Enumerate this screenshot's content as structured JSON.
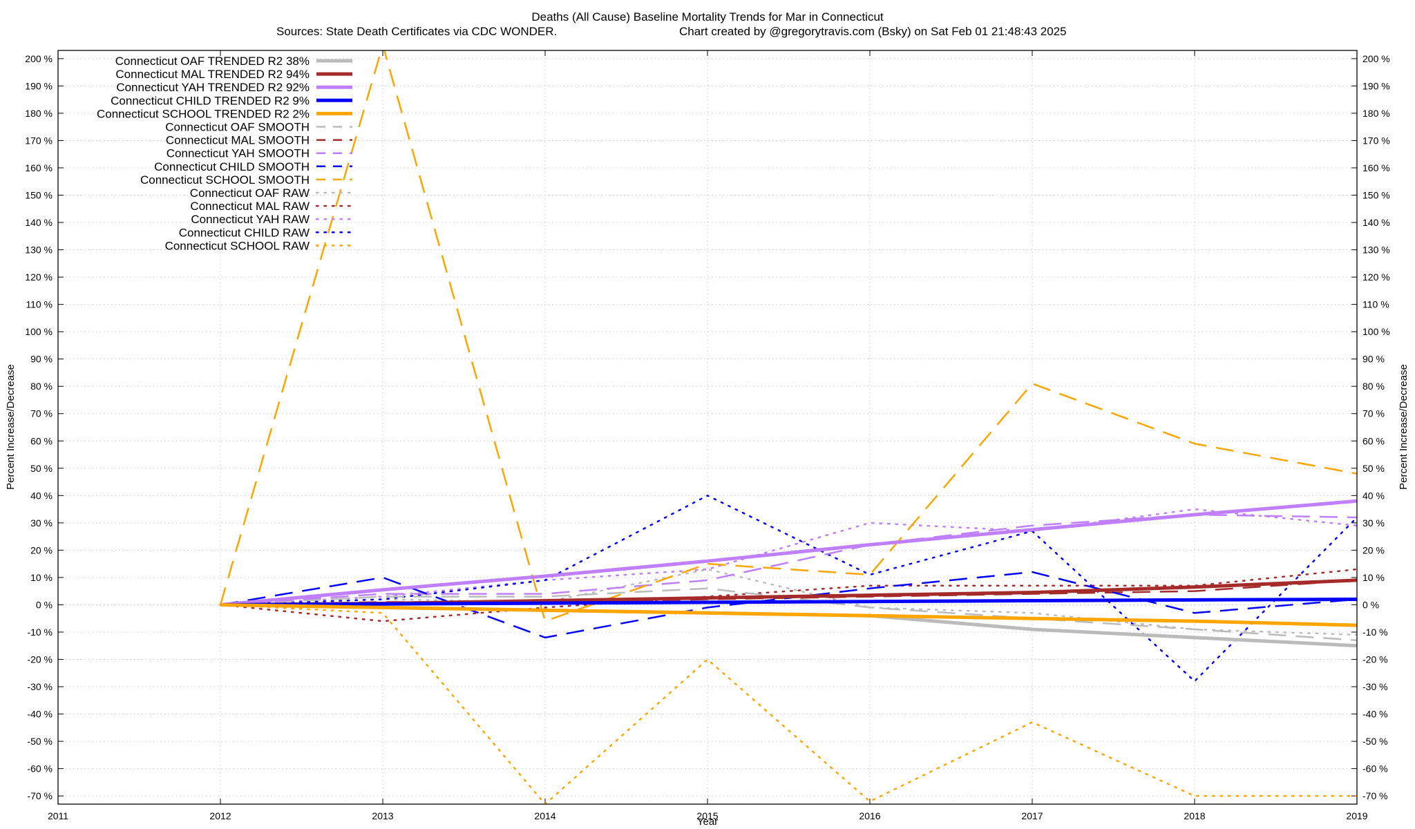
{
  "chart_data": {
    "type": "line",
    "title": "Deaths (All Cause)  Baseline Mortality Trends for Mar in Connecticut",
    "subtitle_left": "Sources: State Death Certificates via CDC WONDER.",
    "subtitle_right": "Chart created by @gregorytravis.com (Bsky) on Sat Feb 01 21:48:43 2025",
    "xlabel": "Year",
    "ylabel": "Percent Increase/Decrease",
    "y2label": "Percent Increase/Decrease",
    "xlim": [
      2011,
      2019
    ],
    "ylim": [
      -73,
      203
    ],
    "x_ticks": [
      2011,
      2012,
      2013,
      2014,
      2015,
      2016,
      2017,
      2018,
      2019
    ],
    "x_tick_labels": [
      "2011",
      "2012",
      "2013",
      "2014",
      "2015",
      "2016",
      "2017",
      "2018",
      "2019"
    ],
    "y_ticks": [
      -70,
      -60,
      -50,
      -40,
      -30,
      -20,
      -10,
      0,
      10,
      20,
      30,
      40,
      50,
      60,
      70,
      80,
      90,
      100,
      110,
      120,
      130,
      140,
      150,
      160,
      170,
      180,
      190,
      200
    ],
    "y_tick_labels_left": [
      "-70 %",
      "-60 %",
      "-50 %",
      "-40 %",
      "-30 %",
      "-20 %",
      "-10 %",
      "0 %",
      "10 %",
      "20 %",
      "30 %",
      "40 %",
      "50 %",
      "60 %",
      "70 %",
      "80 %",
      "90 %",
      "100 %",
      "110 %",
      "120 %",
      "130 %",
      "140 %",
      "150 %",
      "160 %",
      "170 %",
      "180 %",
      "190 %",
      "200 %"
    ],
    "y_tick_labels_right": [
      "-70 %",
      "-60 %",
      "-50 %",
      "-40 %",
      "-30 %",
      "-20 %",
      "-10 %",
      "0 %",
      "10 %",
      "20 %",
      "30 %",
      "40 %",
      "50 %",
      "60 %",
      "70 %",
      "80 %",
      "90 %",
      "100 %",
      "110 %",
      "120 %",
      "130 %",
      "140 %",
      "150 %",
      "160 %",
      "170 %",
      "180 %",
      "190 %",
      "200 %"
    ],
    "grid": true,
    "legend_position": "top-left",
    "x": [
      2012,
      2013,
      2014,
      2015,
      2016,
      2017,
      2018,
      2019
    ],
    "series": [
      {
        "name": "Connecticut OAF TRENDED R2  38%",
        "color": "#bbbbbb",
        "style": "solid",
        "width": 5,
        "values": [
          0,
          -1,
          -2,
          -3,
          -4,
          -9,
          -12,
          -15
        ]
      },
      {
        "name": "Connecticut MAL TRENDED R2  94%",
        "color": "#a52a2a",
        "style": "solid",
        "width": 5,
        "values": [
          0,
          0.5,
          1.5,
          2.5,
          3.5,
          4.5,
          6.5,
          9
        ]
      },
      {
        "name": "Connecticut YAH TRENDED R2  92%",
        "color": "#bf7fff",
        "style": "solid",
        "width": 5,
        "values": [
          0,
          5.5,
          10.5,
          16,
          22,
          27.5,
          33,
          38
        ]
      },
      {
        "name": "Connecticut CHILD TRENDED R2   9%",
        "color": "#0000ff",
        "style": "solid",
        "width": 5,
        "values": [
          0,
          0.3,
          0.6,
          0.9,
          1.2,
          1.5,
          1.8,
          2
        ]
      },
      {
        "name": "Connecticut SCHOOL TRENDED R2   2%",
        "color": "#ffa500",
        "style": "solid",
        "width": 5,
        "values": [
          0,
          -1,
          -2,
          -3,
          -4,
          -5,
          -6,
          -7.5
        ]
      },
      {
        "name": "Connecticut OAF SMOOTH",
        "color": "#bbbbbb",
        "style": "dashed",
        "width": 2.5,
        "values": [
          0,
          3,
          3,
          6,
          -1,
          -5,
          -9,
          -13
        ]
      },
      {
        "name": "Connecticut MAL SMOOTH",
        "color": "#a52a2a",
        "style": "dashed",
        "width": 2.5,
        "values": [
          0,
          1,
          1,
          2,
          3,
          4,
          5,
          9
        ]
      },
      {
        "name": "Connecticut YAH SMOOTH",
        "color": "#bf7fff",
        "style": "dashed",
        "width": 2.5,
        "values": [
          0,
          4,
          4,
          9,
          22,
          29,
          33,
          32
        ]
      },
      {
        "name": "Connecticut CHILD SMOOTH",
        "color": "#0000ff",
        "style": "dashed",
        "width": 2.5,
        "values": [
          0,
          10,
          -12,
          -1,
          6,
          12,
          -3,
          2
        ]
      },
      {
        "name": "Connecticut SCHOOL SMOOTH",
        "color": "#ffa500",
        "style": "dashed",
        "width": 2.5,
        "values": [
          0,
          205,
          -6,
          15,
          11,
          81,
          59,
          48
        ]
      },
      {
        "name": "Connecticut OAF RAW",
        "color": "#bbbbbb",
        "style": "dotted",
        "width": 2.5,
        "values": [
          0,
          2,
          1,
          13,
          -1,
          -3,
          -9,
          -11
        ]
      },
      {
        "name": "Connecticut MAL RAW",
        "color": "#a52a2a",
        "style": "dotted",
        "width": 2.5,
        "values": [
          0,
          -6,
          -1,
          3,
          7,
          7,
          7,
          13
        ]
      },
      {
        "name": "Connecticut YAH RAW",
        "color": "#bf7fff",
        "style": "dotted",
        "width": 2.5,
        "values": [
          0,
          3,
          9,
          13,
          30,
          27,
          35,
          29
        ]
      },
      {
        "name": "Connecticut CHILD RAW",
        "color": "#0000ff",
        "style": "dotted",
        "width": 2.5,
        "values": [
          0,
          2,
          9,
          40,
          11,
          27,
          -28,
          32
        ]
      },
      {
        "name": "Connecticut SCHOOL RAW",
        "color": "#ffa500",
        "style": "dotted",
        "width": 2.5,
        "values": [
          0,
          -3,
          -73,
          -20,
          -72,
          -43,
          -70,
          -70
        ]
      }
    ]
  }
}
